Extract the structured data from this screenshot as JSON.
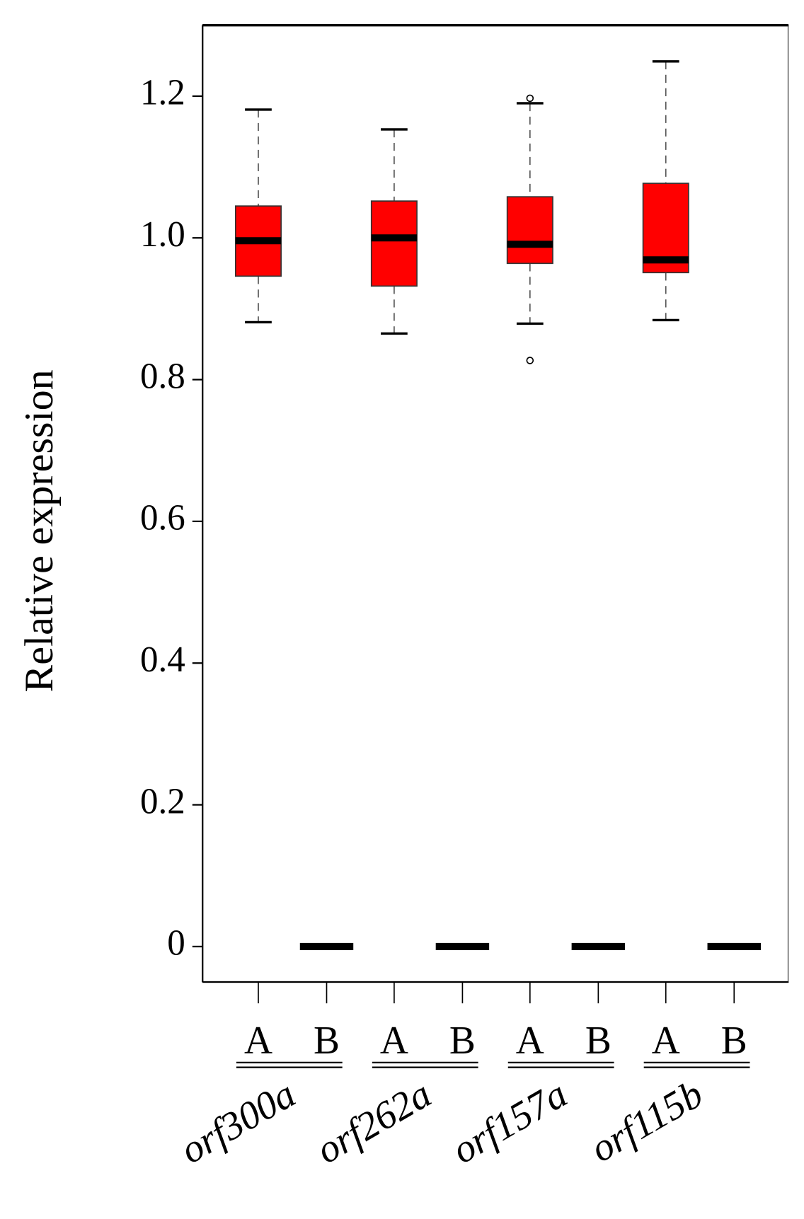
{
  "chart_data": {
    "type": "box",
    "y_label": "Relative expression",
    "categories": [
      "A",
      "B",
      "A",
      "B",
      "A",
      "B",
      "A",
      "B"
    ],
    "groups": [
      "orf300a",
      "orf262a",
      "orf157a",
      "orf115b"
    ],
    "box_color": "#ff0000",
    "boxes": [
      {
        "min": 0.881,
        "q1": 0.946,
        "median": 0.996,
        "q3": 1.045,
        "max": 1.181,
        "outliers": []
      },
      {
        "min": 0,
        "q1": 0,
        "median": 0,
        "q3": 0,
        "max": 0,
        "outliers": []
      },
      {
        "min": 0.865,
        "q1": 0.932,
        "median": 1.0,
        "q3": 1.052,
        "max": 1.153,
        "outliers": []
      },
      {
        "min": 0,
        "q1": 0,
        "median": 0,
        "q3": 0,
        "max": 0,
        "outliers": []
      },
      {
        "min": 0.879,
        "q1": 0.964,
        "median": 0.991,
        "q3": 1.058,
        "max": 1.19,
        "outliers": [
          1.197,
          0.827
        ]
      },
      {
        "min": 0,
        "q1": 0,
        "median": 0,
        "q3": 0,
        "max": 0,
        "outliers": []
      },
      {
        "min": 0.884,
        "q1": 0.951,
        "median": 0.969,
        "q3": 1.077,
        "max": 1.249,
        "outliers": []
      },
      {
        "min": 0,
        "q1": 0,
        "median": 0,
        "q3": 0,
        "max": 0,
        "outliers": []
      }
    ],
    "ylim": [
      -0.05,
      1.3
    ],
    "yticks": [
      0,
      0.2,
      0.4,
      0.6,
      0.8,
      {
        "value": 1,
        "label": "1.0"
      },
      1.2
    ]
  }
}
